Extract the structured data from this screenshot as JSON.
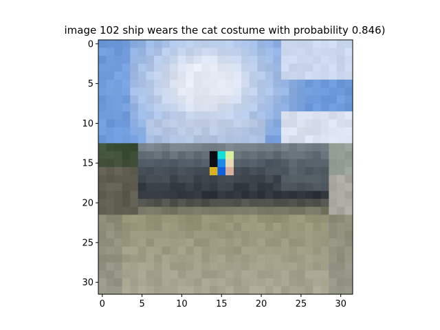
{
  "chart_data": {
    "type": "heatmap",
    "title": "image 102  ship wears the cat costume with probability 0.846)",
    "xlabel": "",
    "ylabel": "",
    "image_size": [
      32,
      32
    ],
    "xlim": [
      -0.5,
      31.5
    ],
    "ylim": [
      31.5,
      -0.5
    ],
    "xticks": [
      0,
      5,
      10,
      15,
      20,
      25,
      30
    ],
    "yticks": [
      0,
      5,
      10,
      15,
      20,
      25,
      30
    ],
    "xtick_labels": [
      "0",
      "5",
      "10",
      "15",
      "20",
      "25",
      "30"
    ],
    "ytick_labels": [
      "0",
      "5",
      "10",
      "15",
      "20",
      "25",
      "30"
    ],
    "patch": {
      "row_start": 14,
      "col_start": 14,
      "size": 3,
      "colors": [
        [
          "#0b0b12",
          "#14e0d8",
          "#d8f0a0"
        ],
        [
          "#101018",
          "#1e8ae8",
          "#e8d8b8"
        ],
        [
          "#d8b020",
          "#1060e0",
          "#d8b0a0"
        ]
      ]
    }
  }
}
